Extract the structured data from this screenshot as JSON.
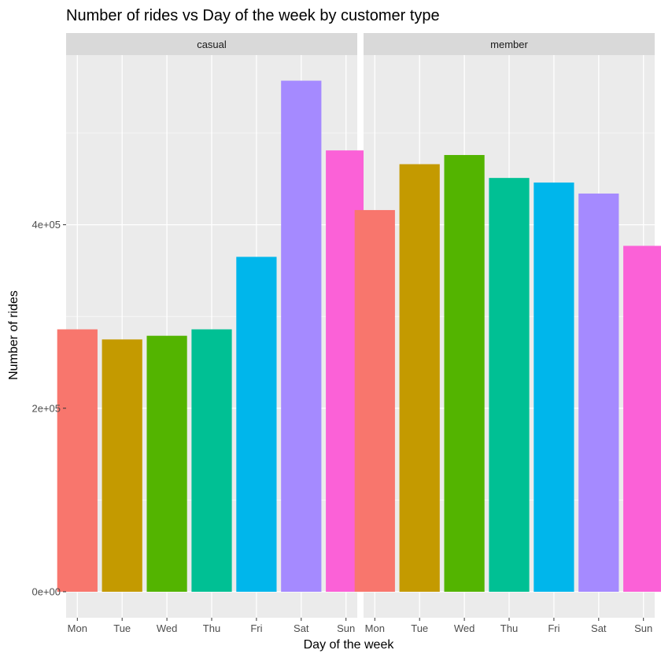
{
  "chart_data": {
    "type": "bar",
    "title": "Number of rides vs Day of the week by customer type",
    "xlabel": "Day of the week",
    "ylabel": "Number of rides",
    "categories": [
      "Mon",
      "Tue",
      "Wed",
      "Thu",
      "Fri",
      "Sat",
      "Sun"
    ],
    "ylim": [
      0,
      570000
    ],
    "y_ticks": [
      0,
      200000,
      400000
    ],
    "y_tick_labels": [
      "0e+00",
      "2e+05",
      "4e+05"
    ],
    "grid": true,
    "legend": "none",
    "colors": [
      "#F8766D",
      "#C49A00",
      "#53B400",
      "#00C094",
      "#00B6EB",
      "#A58AFF",
      "#FB61D7"
    ],
    "panels": [
      {
        "name": "casual",
        "values": [
          286000,
          275000,
          279000,
          286000,
          365000,
          557000,
          481000
        ]
      },
      {
        "name": "member",
        "values": [
          416000,
          466000,
          476000,
          451000,
          446000,
          434000,
          377000
        ]
      }
    ]
  }
}
